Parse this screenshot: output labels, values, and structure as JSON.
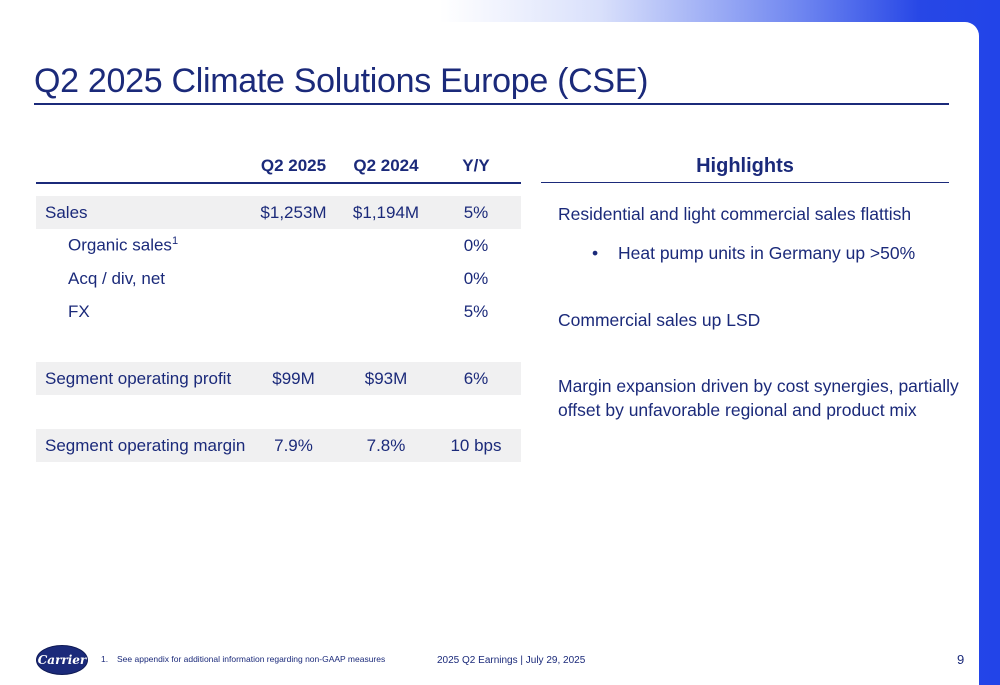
{
  "title": "Q2 2025 Climate Solutions Europe (CSE)",
  "table": {
    "headers": [
      "",
      "Q2 2025",
      "Q2 2024",
      "Y/Y"
    ],
    "rows": {
      "sales": {
        "label": "Sales",
        "q2_2025": "$1,253M",
        "q2_2024": "$1,194M",
        "yy": "5%"
      },
      "organic": {
        "label": "Organic sales",
        "sup": "1",
        "q2_2025": "",
        "q2_2024": "",
        "yy": "0%"
      },
      "acq": {
        "label": "Acq / div, net",
        "q2_2025": "",
        "q2_2024": "",
        "yy": "0%"
      },
      "fx": {
        "label": "FX",
        "q2_2025": "",
        "q2_2024": "",
        "yy": "5%"
      },
      "profit": {
        "label": "Segment operating profit",
        "q2_2025": "$99M",
        "q2_2024": "$93M",
        "yy": "6%"
      },
      "margin": {
        "label": "Segment operating margin",
        "q2_2025": "7.9%",
        "q2_2024": "7.8%",
        "yy": "10 bps"
      }
    }
  },
  "highlights": {
    "title": "Highlights",
    "item1": "Residential and light commercial sales flattish",
    "bullet_char": "•",
    "sub1": "Heat pump units in Germany up >50%",
    "item2": "Commercial sales up LSD",
    "item3_line1": "Margin expansion driven by cost synergies, partially",
    "item3_line2": "offset by unfavorable regional and product mix"
  },
  "footer": {
    "logo_text": "Carrier",
    "footnote_num": "1.",
    "footnote_text": "See appendix for additional information regarding non-GAAP measures",
    "center": "2025 Q2 Earnings | July 29, 2025",
    "page_number": "9"
  },
  "colors": {
    "text": "#1b2a7a",
    "accent_blue": "#2244e8",
    "row_shade": "#f0f0f1"
  }
}
